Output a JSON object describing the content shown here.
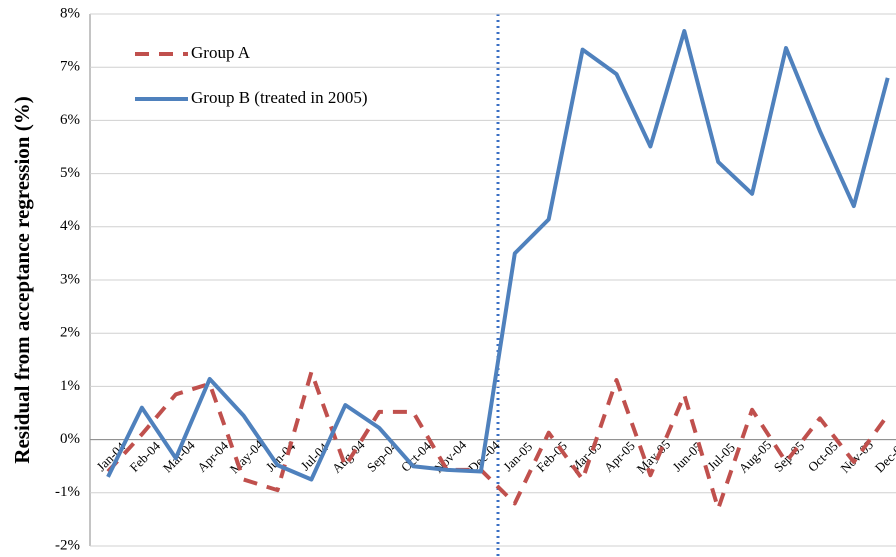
{
  "chart_data": {
    "type": "line",
    "y_label": "Residual from acceptance regression (%)",
    "categories": [
      "Jan-04",
      "Feb-04",
      "Mar-04",
      "Apr-04",
      "May-04",
      "Jun-04",
      "Jul-04",
      "Aug-04",
      "Sep-04",
      "Oct-04",
      "Nov-04",
      "Dec-04",
      "Jan-05",
      "Feb-05",
      "Mar-05",
      "Apr-05",
      "May-05",
      "Jun-05",
      "Jul-05",
      "Aug-05",
      "Sep-05",
      "Oct-05",
      "Nov-05",
      "Dec-05"
    ],
    "series": [
      {
        "name": "Group A",
        "color": "#c0504d",
        "dash": true,
        "values": [
          -0.6,
          0.1,
          0.85,
          1.05,
          -0.75,
          -0.95,
          1.27,
          -0.5,
          0.52,
          0.52,
          -0.57,
          -0.57,
          -1.2,
          0.13,
          -0.75,
          1.12,
          -0.67,
          0.84,
          -1.3,
          0.56,
          -0.42,
          0.4,
          -0.42,
          0.46
        ]
      },
      {
        "name": "Group B (treated in 2005)",
        "color": "#4f81bd",
        "dash": false,
        "values": [
          -0.7,
          0.6,
          -0.35,
          1.14,
          0.45,
          -0.48,
          -0.75,
          0.65,
          0.22,
          -0.5,
          -0.57,
          -0.6,
          3.5,
          4.14,
          7.33,
          6.87,
          5.51,
          7.68,
          5.22,
          4.62,
          7.36,
          5.8,
          4.39,
          6.8
        ]
      }
    ],
    "ylim": [
      -2,
      8
    ],
    "yticks": [
      {
        "value": -2,
        "label": "-2%"
      },
      {
        "value": -1,
        "label": "-1%"
      },
      {
        "value": 0,
        "label": "0%"
      },
      {
        "value": 1,
        "label": "1%"
      },
      {
        "value": 2,
        "label": "2%"
      },
      {
        "value": 3,
        "label": "3%"
      },
      {
        "value": 4,
        "label": "4%"
      },
      {
        "value": 5,
        "label": "5%"
      },
      {
        "value": 6,
        "label": "6%"
      },
      {
        "value": 7,
        "label": "7%"
      },
      {
        "value": 8,
        "label": "8%"
      }
    ],
    "grid": true,
    "legend": "top-left"
  }
}
